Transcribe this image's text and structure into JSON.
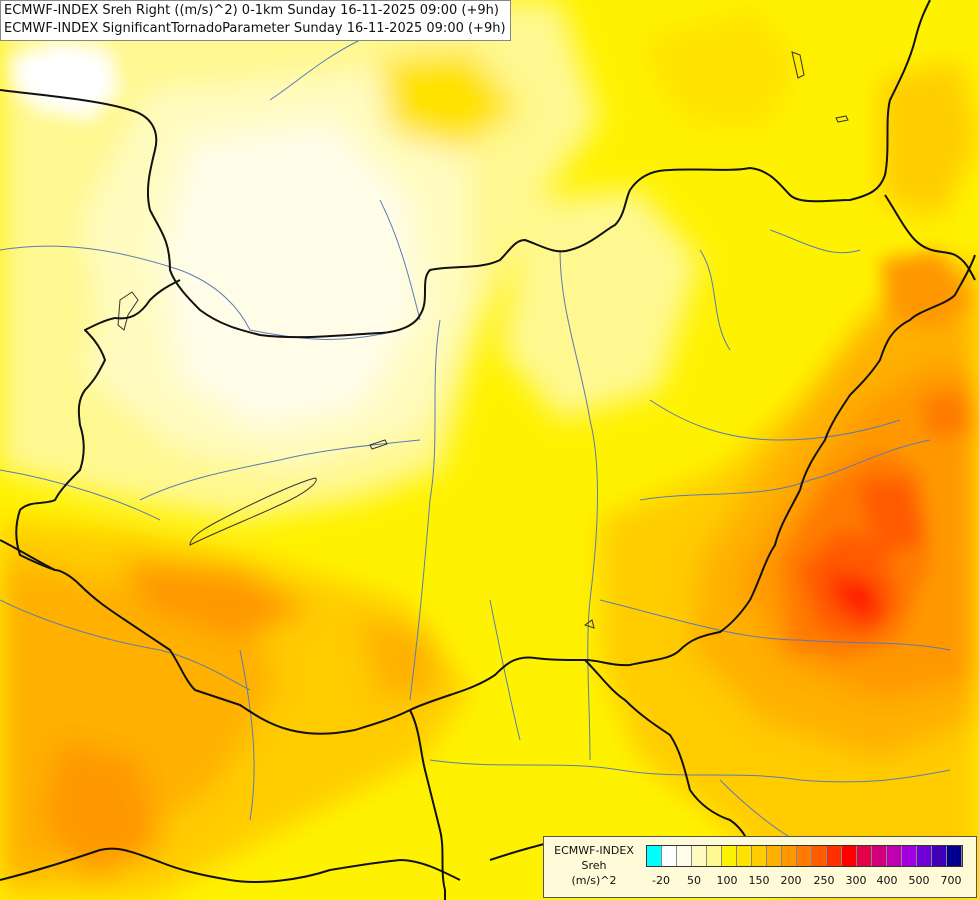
{
  "titles": {
    "line1": "ECMWF-INDEX Sreh Right ((m/s)^2) 0-1km Sunday 16-11-2025 09:00 (+9h)",
    "line2": "ECMWF-INDEX SignificantTornadoParameter Sunday 16-11-2025 09:00 (+9h)"
  },
  "legend": {
    "source": "ECMWF-INDEX",
    "parameter": "Sreh",
    "unit": "(m/s)^2",
    "colors": [
      "#00ffff",
      "#ffffff",
      "#fffde8",
      "#fffbc0",
      "#fff890",
      "#fff200",
      "#ffe200",
      "#ffcc00",
      "#ffb000",
      "#ff9800",
      "#ff7a00",
      "#ff5a00",
      "#ff3000",
      "#ff0000",
      "#e4004a",
      "#d0007a",
      "#c000b0",
      "#a000e0",
      "#7000d8",
      "#4000b8",
      "#000090"
    ],
    "ticks": [
      "-20",
      "50",
      "100",
      "150",
      "200",
      "250",
      "300",
      "400",
      "500",
      "700"
    ]
  }
}
